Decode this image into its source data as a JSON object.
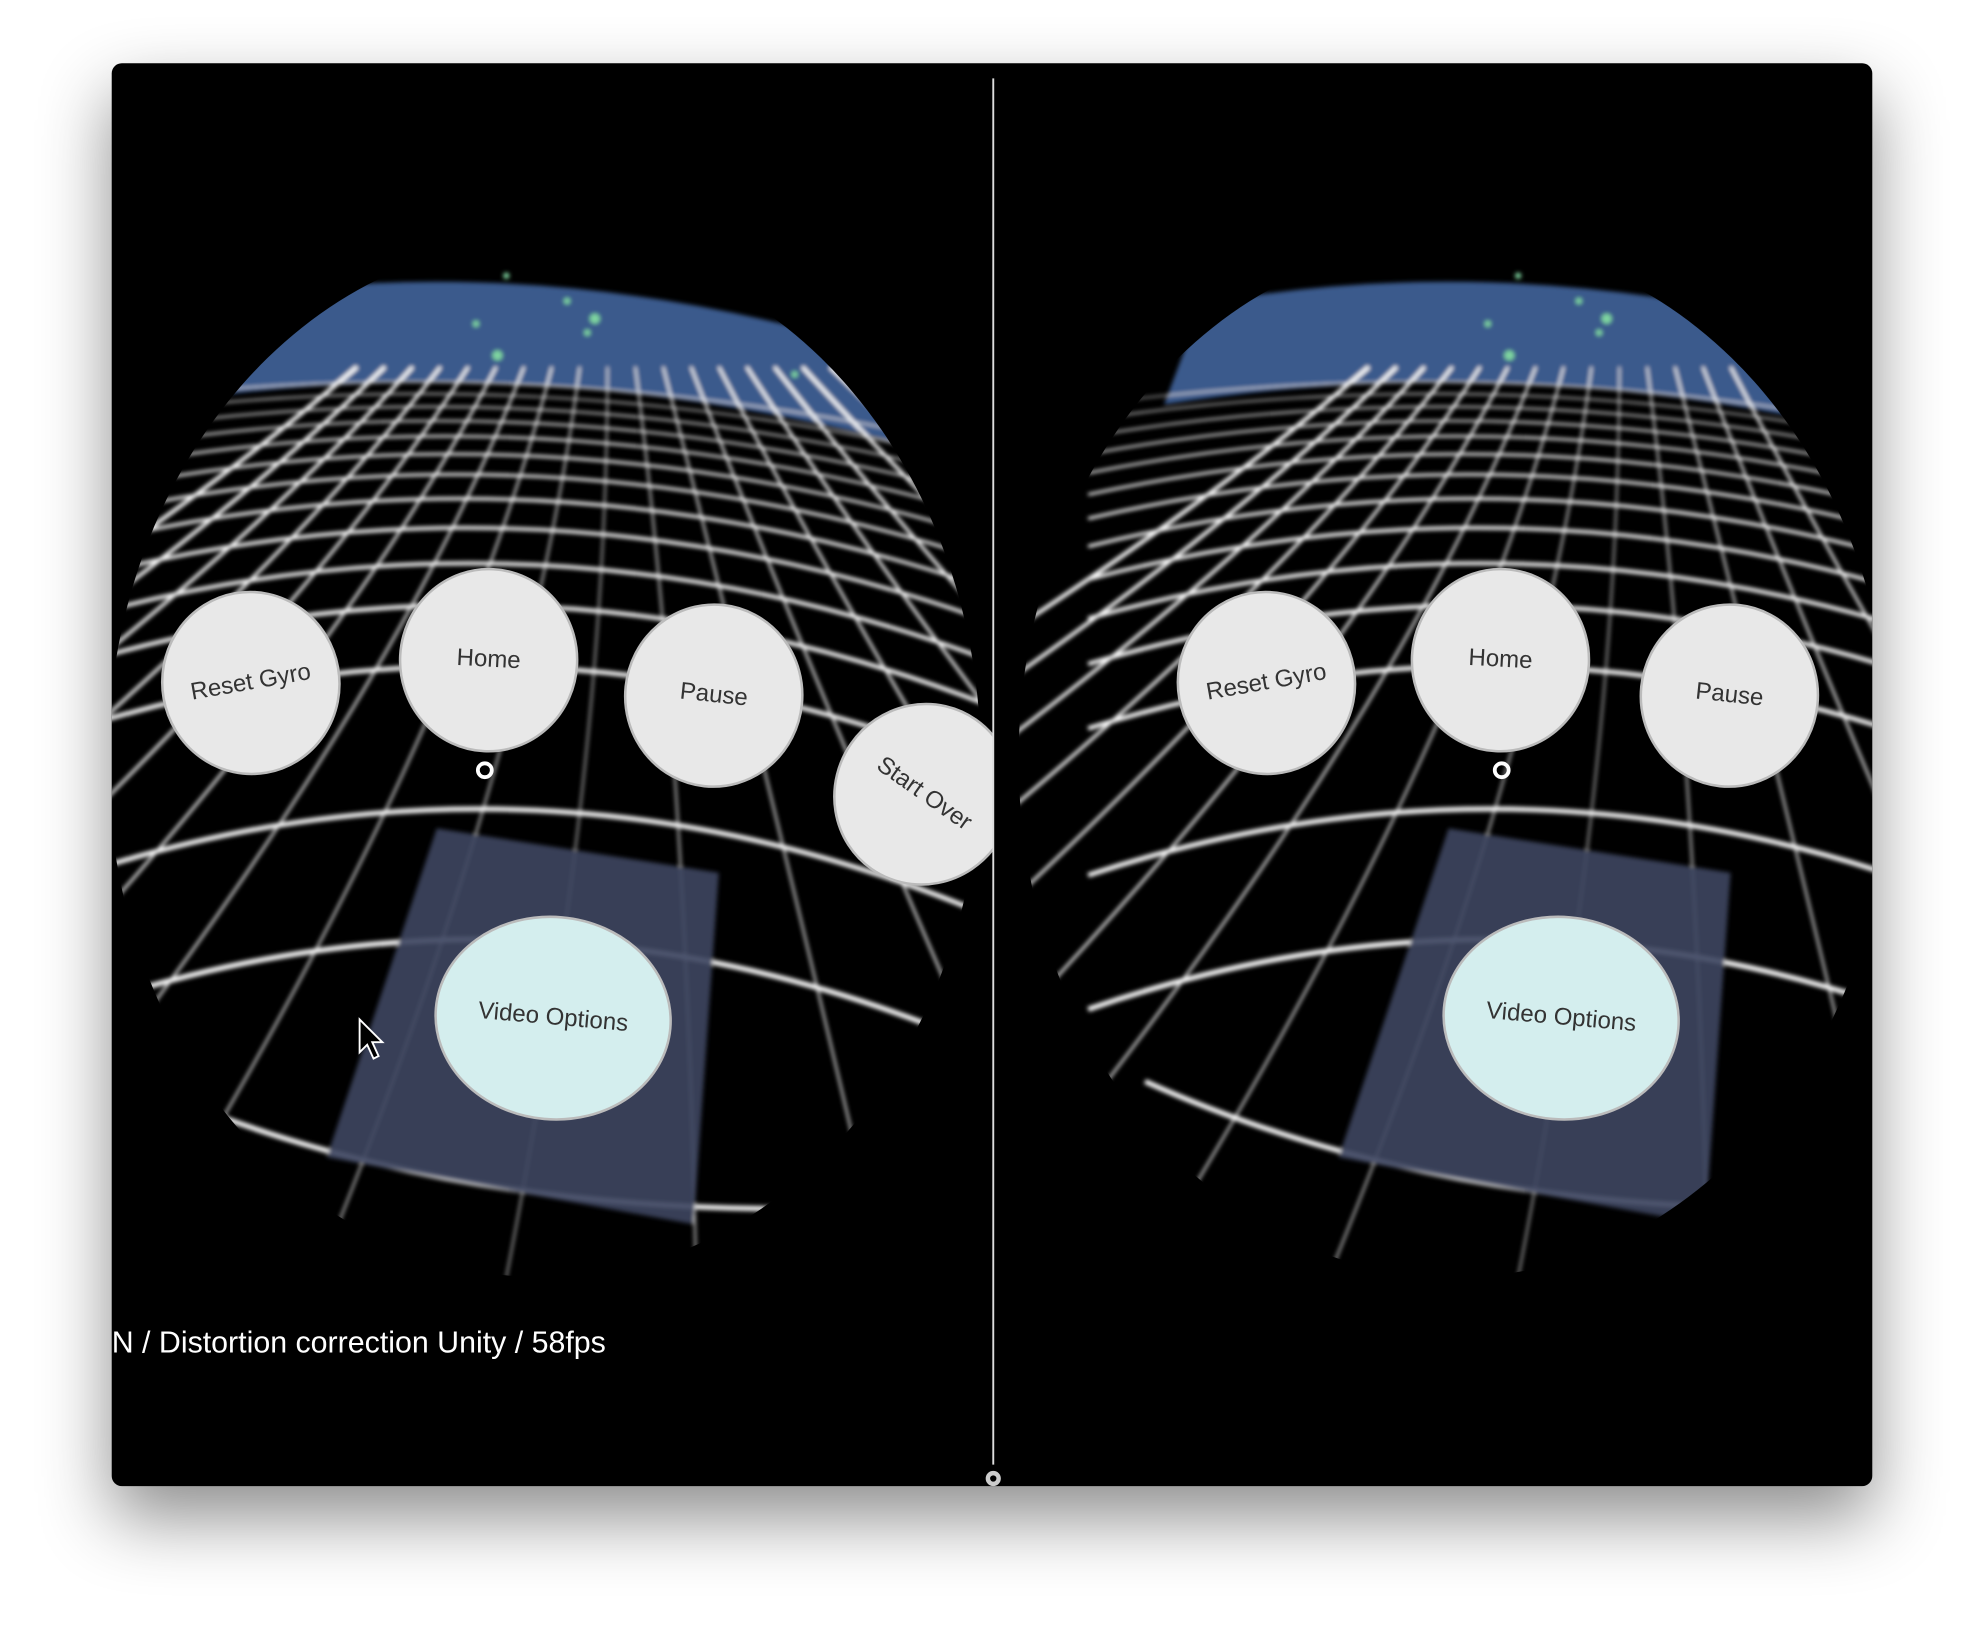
{
  "left_eye": {
    "buttons": [
      "Reset Gyro",
      "Home",
      "Pause",
      "Start Over"
    ],
    "video_options": "Video Options"
  },
  "right_eye": {
    "buttons": [
      "Reset Gyro",
      "Home",
      "Pause"
    ],
    "video_options": "Video Options"
  },
  "status": "N / Distortion correction Unity / 58fps"
}
